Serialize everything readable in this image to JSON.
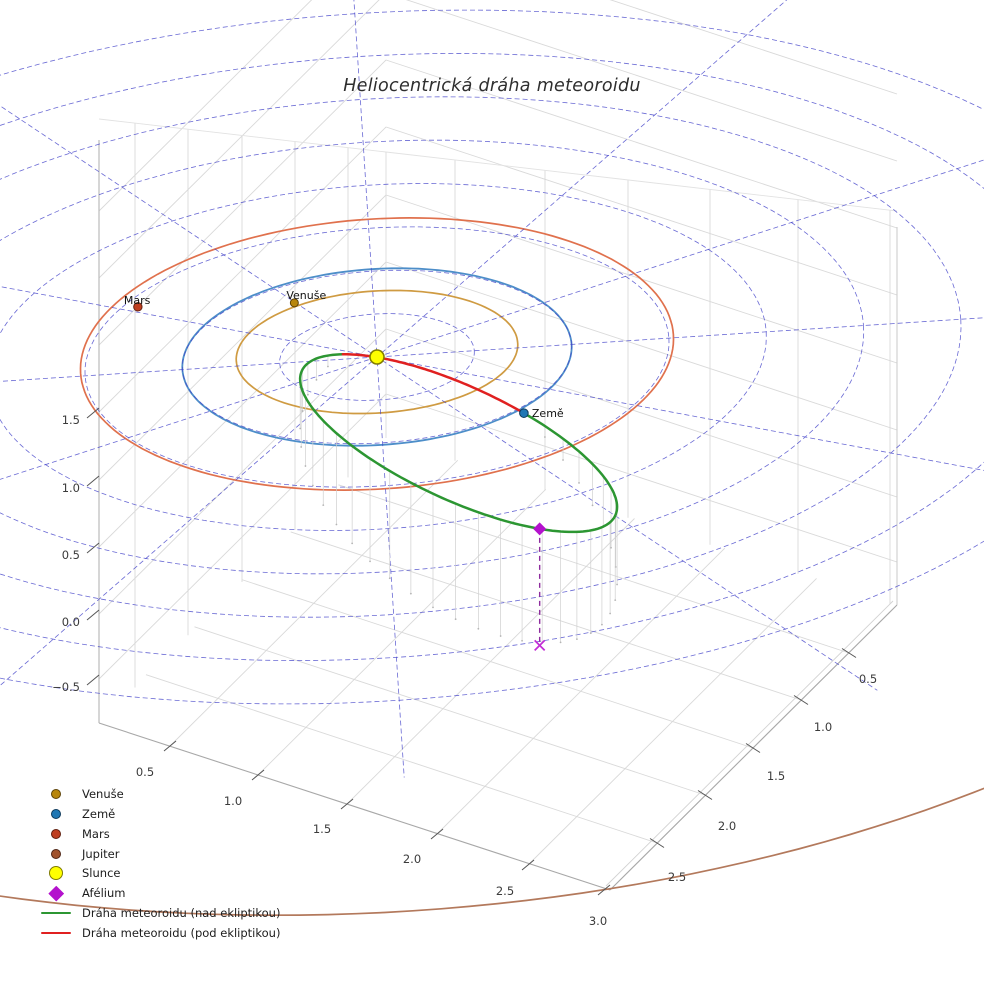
{
  "title": "Heliocentrická dráha meteoroidu",
  "plot_labels": {
    "mars": "Mars",
    "venus": "Venuše",
    "earth": "Země"
  },
  "axes": {
    "x_tick_labels": [
      "0.5",
      "1.0",
      "1.5",
      "2.0",
      "2.5",
      "3.0"
    ],
    "y_tick_labels": [
      "0.5",
      "1.0",
      "1.5",
      "2.0",
      "2.5"
    ],
    "z_tick_labels": [
      "1.5",
      "1.0",
      "0.5",
      "0.0",
      "−0.5"
    ]
  },
  "legend": {
    "items": [
      {
        "label": "Venuše",
        "marker": "dot",
        "color": "#b8860b",
        "edge": "#5e4306"
      },
      {
        "label": "Země",
        "marker": "dot",
        "color": "#1f77b4",
        "edge": "#0d3a5c"
      },
      {
        "label": "Mars",
        "marker": "dot",
        "color": "#bf3f21",
        "edge": "#611f0e"
      },
      {
        "label": "Jupiter",
        "marker": "dot",
        "color": "#a0522d",
        "edge": "#4f2616"
      },
      {
        "label": "Slunce",
        "marker": "sun",
        "color": "#ffff00",
        "edge": "#7f7b00"
      },
      {
        "label": "Afélium",
        "marker": "diamond",
        "color": "#b412cd",
        "edge": "#b412cd"
      },
      {
        "label": "Dráha meteoroidu (nad ekliptikou)",
        "marker": "line",
        "color": "#2c9632"
      },
      {
        "label": "Dráha meteoroidu (pod ekliptikou)",
        "marker": "line",
        "color": "#e02020"
      }
    ]
  },
  "colors": {
    "polar_grid": "#4343c9",
    "box_grid": "#d9d9d9",
    "axis_edge": "#a8a8a8",
    "stems": "#cfcfcf",
    "orbit_venus": "#cf9b42",
    "orbit_earth": "#4d8ec9",
    "orbit_mars": "#e0714d",
    "orbit_jupiter": "#b3795c",
    "meteoroid_above": "#2c9632",
    "meteoroid_below": "#e02020",
    "sun_fill": "#ffff00",
    "sun_edge": "#827d00",
    "aphelion": "#b412cd",
    "aphelion_drop": "#8e2d9e",
    "tick_text": "#3b3b3b",
    "label_text": "#111111"
  },
  "chart_data": {
    "type": "line",
    "projection": "3d",
    "units": "AU",
    "title": "Heliocentrická dráha meteoroidu",
    "x_ticks": [
      0.5,
      1.0,
      1.5,
      2.0,
      2.5,
      3.0
    ],
    "y_ticks": [
      0.5,
      1.0,
      1.5,
      2.0,
      2.5
    ],
    "z_ticks": [
      -0.5,
      0.0,
      0.5,
      1.0,
      1.5
    ],
    "grid": true,
    "legend_position": "lower-left",
    "polar_grid": {
      "circle_radii_au": [
        0.5,
        1.0,
        1.5,
        2.0,
        2.5,
        3.0,
        3.5,
        4.0
      ],
      "radial_count": 12
    },
    "planet_orbits": [
      {
        "name": "Venuše",
        "radius_au": 0.72,
        "marker_longitude_deg": 236
      },
      {
        "name": "Země",
        "radius_au": 1.0,
        "marker_longitude_deg": 45
      },
      {
        "name": "Mars",
        "radius_au": 1.52,
        "marker_longitude_deg": 215
      },
      {
        "name": "Jupiter",
        "radius_au": 5.2,
        "marker_longitude_deg": null
      }
    ],
    "sun": {
      "name": "Slunce",
      "position_au": [
        0,
        0,
        0
      ]
    },
    "meteoroid": {
      "above_ecliptic_label": "Dráha meteoroidu (nad ekliptikou)",
      "below_ecliptic_label": "Dráha meteoroidu (pod ekliptikou)",
      "perihelion_au": 0.15,
      "aphelion_au": 3.0,
      "inclination_deg": 30,
      "aphelion_height_above_ecliptic_au": 0.87,
      "node_at_earth": true,
      "aphelion_marker": "Afélium"
    }
  }
}
